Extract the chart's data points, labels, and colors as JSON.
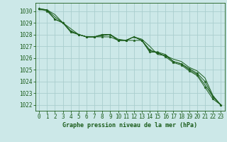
{
  "title": "Graphe pression niveau de la mer (hPa)",
  "bg_color": "#cce8e8",
  "grid_color": "#aacece",
  "line_color": "#1a5c1a",
  "marker_color": "#1a5c1a",
  "xlim": [
    -0.5,
    23.5
  ],
  "ylim": [
    1021.5,
    1030.7
  ],
  "yticks": [
    1022,
    1023,
    1024,
    1025,
    1026,
    1027,
    1028,
    1029,
    1030
  ],
  "xticks": [
    0,
    1,
    2,
    3,
    4,
    5,
    6,
    7,
    8,
    9,
    10,
    11,
    12,
    13,
    14,
    15,
    16,
    17,
    18,
    19,
    20,
    21,
    22,
    23
  ],
  "series": [
    [
      1030.2,
      1030.1,
      1029.7,
      1029.0,
      1028.3,
      1028.0,
      1027.8,
      1027.8,
      1028.0,
      1028.0,
      1027.6,
      1027.5,
      1027.8,
      1027.6,
      1027.0,
      1026.3,
      1026.2,
      1025.9,
      1025.7,
      1025.2,
      1024.9,
      1024.3,
      1022.8,
      1022.0
    ],
    [
      1030.1,
      1030.1,
      1029.5,
      1029.0,
      1028.5,
      1028.0,
      1027.8,
      1027.8,
      1027.9,
      1028.0,
      1027.5,
      1027.5,
      1027.8,
      1027.5,
      1026.6,
      1026.5,
      1026.3,
      1025.7,
      1025.5,
      1025.0,
      1024.6,
      1023.7,
      1022.7,
      1022.0
    ],
    [
      1030.2,
      1030.0,
      1029.3,
      1029.0,
      1028.2,
      1028.0,
      1027.8,
      1027.8,
      1027.8,
      1027.8,
      1027.5,
      1027.5,
      1027.5,
      1027.5,
      1026.5,
      1026.5,
      1026.1,
      1025.6,
      1025.4,
      1024.9,
      1024.5,
      1023.5,
      1022.5,
      1022.0
    ],
    [
      1030.2,
      1030.1,
      1029.3,
      1029.0,
      1028.3,
      1028.0,
      1027.8,
      1027.8,
      1028.0,
      1028.0,
      1027.5,
      1027.5,
      1027.8,
      1027.5,
      1026.7,
      1026.4,
      1026.2,
      1025.7,
      1025.5,
      1025.1,
      1024.7,
      1024.0,
      1022.7,
      1022.0
    ]
  ],
  "has_markers": [
    false,
    false,
    true,
    true
  ],
  "tick_fontsize": 5.5,
  "label_fontsize": 6.0
}
